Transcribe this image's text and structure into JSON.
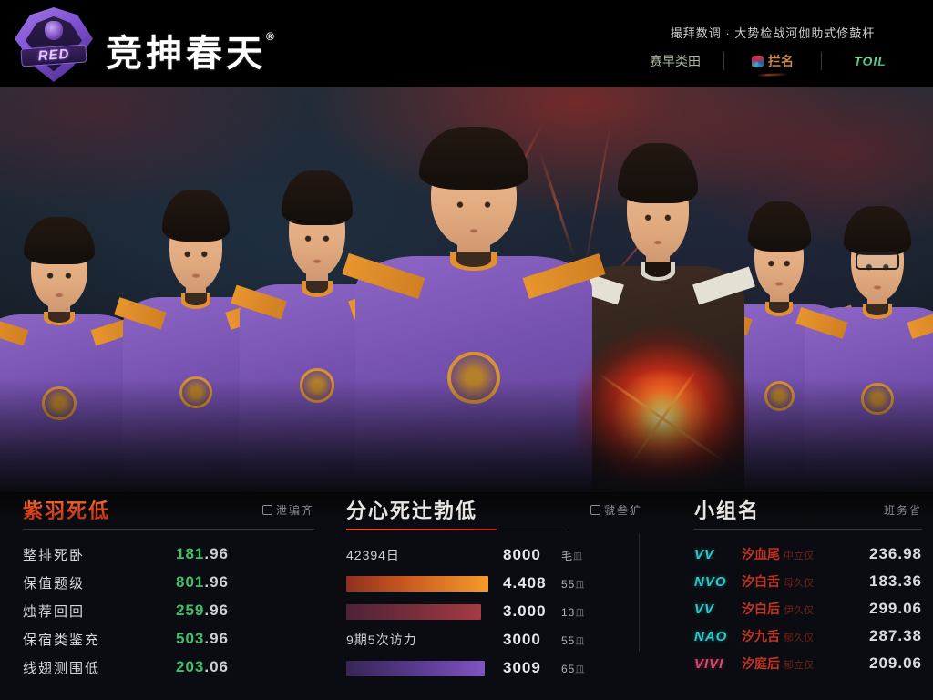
{
  "header": {
    "logo": {
      "badge_text": "RED",
      "title": "竞抻春天",
      "reg": "®"
    },
    "tagline": "撮拜数调 · 大势检战河伽助式修鼓杆",
    "nav": [
      {
        "label": "赛早类田"
      },
      {
        "label": "拦名"
      },
      {
        "label": "TOIL"
      }
    ]
  },
  "colors": {
    "accent_red": "#d8341f",
    "value_green": "#3fc06a",
    "tag_teal": "#2fc8c8",
    "bar_orange": "#f59b2a",
    "bar_maroon": "#a63a44",
    "bar_purple": "#8053c2",
    "jersey_purple": "#7450ae",
    "trim_orange": "#e09030"
  },
  "panels": {
    "left": {
      "title": "紫羽死低",
      "subtitle": "泄骗齐",
      "rows": [
        {
          "label": "整排死卧",
          "value_int": "181",
          "value_dec": ".96"
        },
        {
          "label": "保值题级",
          "value_int": "801",
          "value_dec": ".96"
        },
        {
          "label": "烛荐回回",
          "value_int": "259",
          "value_dec": ".96"
        },
        {
          "label": "保宿类鉴充",
          "value_int": "503",
          "value_dec": ".96"
        },
        {
          "label": "线翅测围低",
          "value_int": "203",
          "value_dec": ".06"
        }
      ]
    },
    "middle": {
      "title": "分心死辻勃低",
      "subtitle": "虢叁犷",
      "rows": [
        {
          "type": "text",
          "label": "42394日",
          "value": "8000",
          "suffix": "毛",
          "unit": "皿"
        },
        {
          "type": "bar",
          "bar": "orange",
          "value": "4.408",
          "suffix": "55",
          "unit": "皿"
        },
        {
          "type": "bar",
          "bar": "maroon",
          "value": "3.000",
          "suffix": "13",
          "unit": "皿"
        },
        {
          "type": "text",
          "label": "9期5次访力",
          "value": "3000",
          "suffix": "55",
          "unit": "皿"
        },
        {
          "type": "bar",
          "bar": "purple",
          "value": "3009",
          "suffix": "65",
          "unit": "皿"
        }
      ]
    },
    "right": {
      "title": "小组名",
      "subtitle": "班务省",
      "rows": [
        {
          "tag": "VV",
          "label": "汐血尾",
          "sublabel": "中立仅",
          "value": "236.98"
        },
        {
          "tag": "NVO",
          "label": "汐白舌",
          "sublabel": "母久仅",
          "value": "183.36"
        },
        {
          "tag": "VV",
          "label": "汐白后",
          "sublabel": "伊久仅",
          "value": "299.06"
        },
        {
          "tag": "NAO",
          "label": "汐九舌",
          "sublabel": "郁久仅",
          "value": "287.38"
        },
        {
          "tag": "VIVI",
          "label": "汐庭后",
          "sublabel": "郁立仅",
          "value": "209.06"
        }
      ]
    }
  }
}
